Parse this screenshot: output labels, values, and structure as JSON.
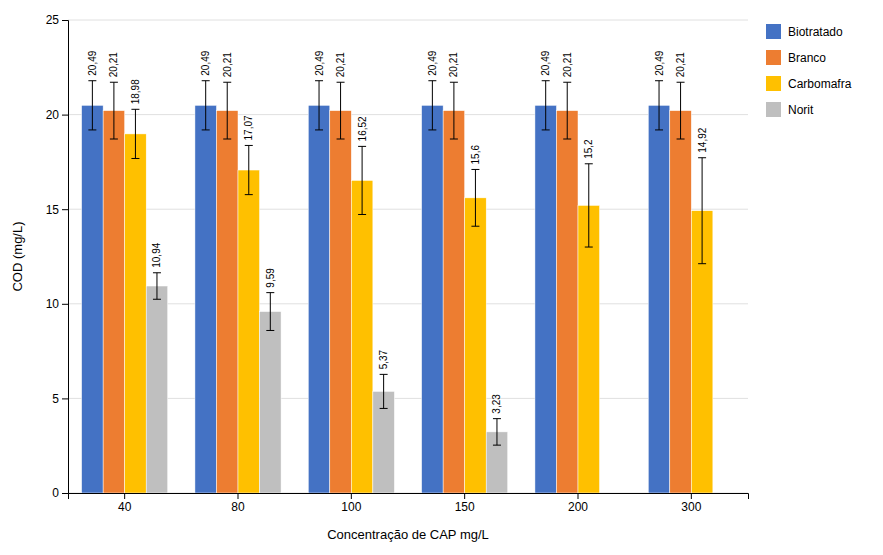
{
  "chart_data": {
    "type": "bar",
    "xlabel": "Concentração de CAP mg/L",
    "ylabel": "COD (mg/L)",
    "categories": [
      "40",
      "80",
      "100",
      "150",
      "200",
      "300"
    ],
    "series": [
      {
        "name": "Biotratado",
        "color": "#4472C4",
        "values": [
          20.49,
          20.49,
          20.49,
          20.49,
          20.49,
          20.49
        ],
        "errors": [
          1.3,
          1.3,
          1.3,
          1.3,
          1.3,
          1.3
        ],
        "value_labels": [
          "20,49",
          "20,49",
          "20,49",
          "20,49",
          "20,49",
          "20,49"
        ]
      },
      {
        "name": "Branco",
        "color": "#ED7D31",
        "values": [
          20.21,
          20.21,
          20.21,
          20.21,
          20.21,
          20.21
        ],
        "errors": [
          1.5,
          1.5,
          1.5,
          1.5,
          1.5,
          1.5
        ],
        "value_labels": [
          "20,21",
          "20,21",
          "20,21",
          "20,21",
          "20,21",
          "20,21"
        ]
      },
      {
        "name": "Carbomafra",
        "color": "#FFC000",
        "values": [
          18.98,
          17.07,
          16.52,
          15.6,
          15.2,
          14.92
        ],
        "errors": [
          1.3,
          1.3,
          1.8,
          1.5,
          2.2,
          2.8
        ],
        "value_labels": [
          "18,98",
          "17,07",
          "16,52",
          "15,6",
          "15,2",
          "14,92"
        ]
      },
      {
        "name": "Norit",
        "color": "#BFBFBF",
        "values": [
          10.94,
          9.59,
          5.37,
          3.23,
          null,
          null
        ],
        "errors": [
          0.7,
          1.0,
          0.9,
          0.7,
          null,
          null
        ],
        "value_labels": [
          "10,94",
          "9,59",
          "5,37",
          "3,23",
          null,
          null
        ]
      }
    ],
    "ylim": [
      0,
      25
    ],
    "yticks": [
      0,
      5,
      10,
      15,
      20,
      25
    ],
    "grid": true,
    "legend": "right",
    "data_labels": true
  }
}
